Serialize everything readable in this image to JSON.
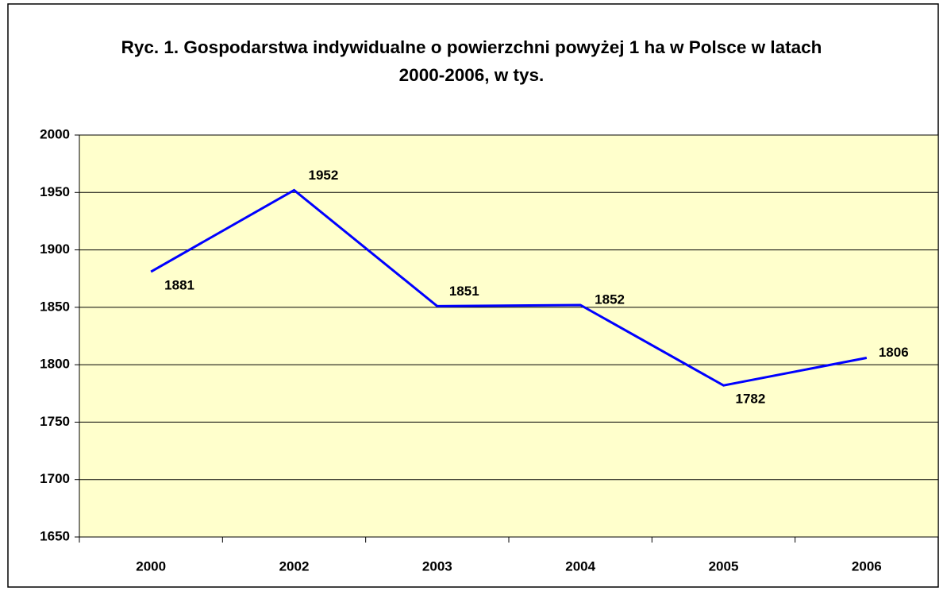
{
  "chart_data": {
    "type": "line",
    "title": "Ryc. 1. Gospodarstwa indywidualne o powierzchni powyżej 1 ha w Polsce w latach 2000-2006, w tys.",
    "categories": [
      "2000",
      "2002",
      "2003",
      "2004",
      "2005",
      "2006"
    ],
    "series": [
      {
        "name": null,
        "color": "#0000ff",
        "values": [
          1881,
          1952,
          1851,
          1852,
          1782,
          1806
        ]
      }
    ],
    "ylim": [
      1650,
      2000
    ],
    "yticks": [
      1650,
      1700,
      1750,
      1800,
      1850,
      1900,
      1950,
      2000
    ],
    "grid": true,
    "plot_background": "#ffffcc"
  }
}
